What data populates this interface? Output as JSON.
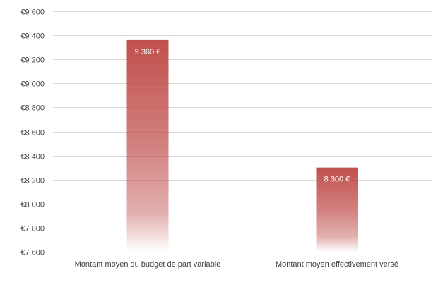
{
  "chart_data": {
    "type": "bar",
    "categories": [
      "Montant moyen du budget de part variable",
      "Montant moyen effectivement versé"
    ],
    "values": [
      9360,
      8300
    ],
    "data_labels": [
      "9 360 €",
      "8 300 €"
    ],
    "ylim": [
      7600,
      9600
    ],
    "yticks": [
      7600,
      7800,
      8000,
      8200,
      8400,
      8600,
      8800,
      9000,
      9200,
      9400,
      9600
    ],
    "ytick_labels": [
      "€7 600",
      "€7 800",
      "€8 000",
      "€8 200",
      "€8 400",
      "€8 600",
      "€8 800",
      "€9 000",
      "€9 200",
      "€9 400",
      "€9 600"
    ],
    "grid": true,
    "colors": {
      "bar": "#c0504d",
      "grid": "#d9d9d9",
      "text": "#404040",
      "data_label": "#ffffff"
    }
  }
}
